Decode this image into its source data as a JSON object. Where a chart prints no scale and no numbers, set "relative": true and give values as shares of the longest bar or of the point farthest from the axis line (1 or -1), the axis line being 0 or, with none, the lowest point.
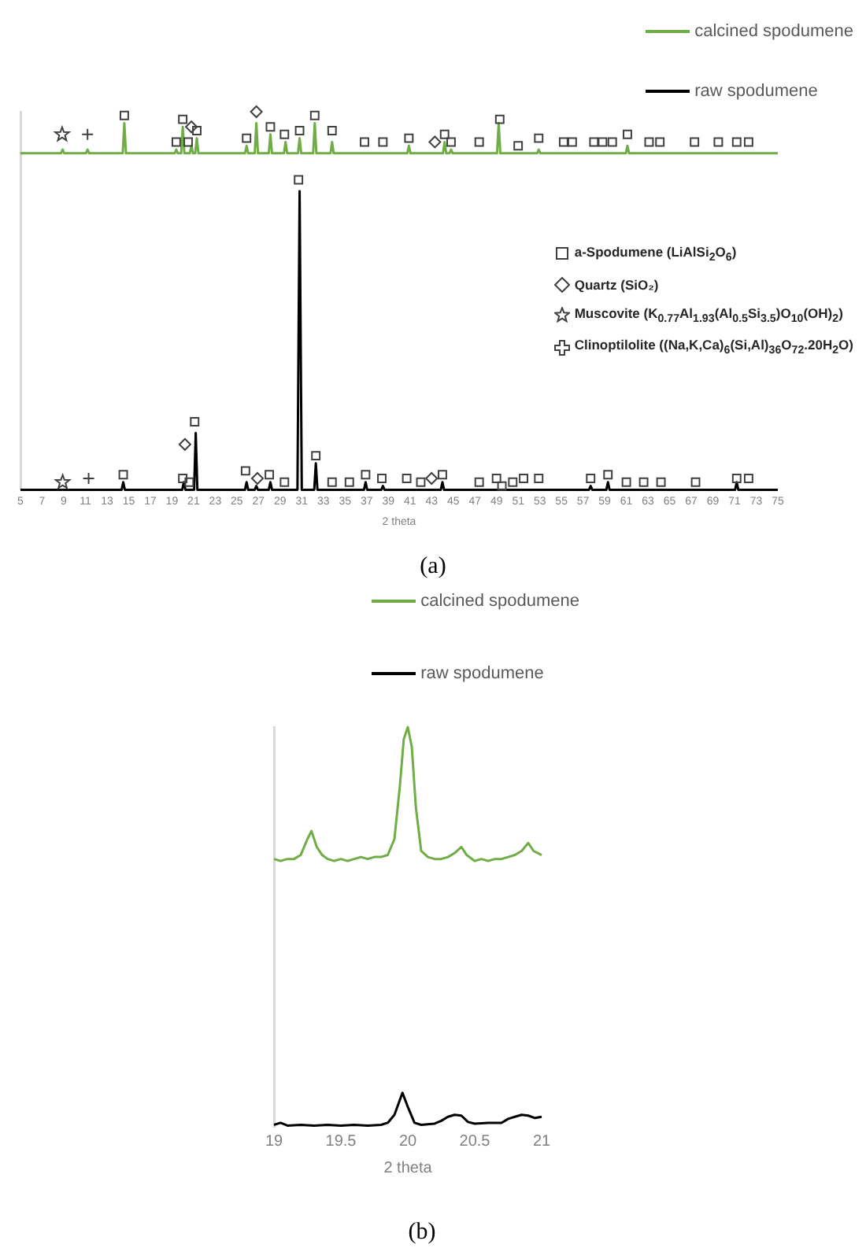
{
  "chart_data": [
    {
      "type": "line",
      "xlabel": "2 theta",
      "xlim": [
        5,
        75
      ],
      "xticks": [
        5,
        7,
        9,
        11,
        13,
        15,
        17,
        19,
        21,
        23,
        25,
        27,
        29,
        31,
        33,
        35,
        37,
        39,
        41,
        43,
        45,
        47,
        49,
        51,
        53,
        55,
        57,
        59,
        61,
        63,
        65,
        67,
        69,
        71,
        73,
        75
      ],
      "relative": true,
      "legend": "top right",
      "annotations": [
        "(a)"
      ],
      "series": [
        {
          "name": "calcined spodumene",
          "color": "#70ad47",
          "x": [
            5,
            8.75,
            8.9,
            9.05,
            11.05,
            11.2,
            11.35,
            14.45,
            14.6,
            14.75,
            19.25,
            19.4,
            19.55,
            19.85,
            20.0,
            20.15,
            20.65,
            20.8,
            20.95,
            21.15,
            21.3,
            21.45,
            25.75,
            25.9,
            26.05,
            26.65,
            26.8,
            26.95,
            27.95,
            28.1,
            28.25,
            29.35,
            29.5,
            29.65,
            30.65,
            30.8,
            30.95,
            32.05,
            32.2,
            32.35,
            33.65,
            33.8,
            33.95,
            40.75,
            40.9,
            41.05,
            44.05,
            44.2,
            44.35,
            44.65,
            44.8,
            44.95,
            49.05,
            49.2,
            49.35,
            52.75,
            52.9,
            53.05,
            60.95,
            61.1,
            61.25,
            75
          ],
          "values": [
            0.89,
            0.89,
            0.9,
            0.89,
            0.89,
            0.9,
            0.89,
            0.89,
            0.97,
            0.89,
            0.89,
            0.9,
            0.89,
            0.89,
            0.96,
            0.89,
            0.89,
            0.91,
            0.89,
            0.89,
            0.93,
            0.89,
            0.89,
            0.91,
            0.89,
            0.89,
            0.97,
            0.89,
            0.89,
            0.94,
            0.89,
            0.89,
            0.92,
            0.89,
            0.89,
            0.93,
            0.89,
            0.89,
            0.97,
            0.89,
            0.89,
            0.92,
            0.89,
            0.89,
            0.91,
            0.89,
            0.89,
            0.92,
            0.89,
            0.89,
            0.9,
            0.89,
            0.89,
            0.97,
            0.89,
            0.89,
            0.9,
            0.89,
            0.89,
            0.91,
            0.89,
            0.89
          ]
        },
        {
          "name": "raw spodumene",
          "color": "#000000",
          "x": [
            5,
            14.35,
            14.5,
            14.65,
            19.95,
            20.1,
            20.25,
            21.05,
            21.2,
            21.35,
            25.75,
            25.9,
            26.05,
            26.65,
            26.8,
            26.95,
            27.95,
            28.1,
            28.25,
            30.6,
            30.8,
            31.0,
            32.15,
            32.3,
            32.45,
            36.75,
            36.9,
            37.05,
            38.35,
            38.5,
            38.65,
            43.85,
            44.0,
            44.15,
            57.55,
            57.7,
            57.85,
            59.15,
            59.3,
            59.45,
            71.05,
            71.2,
            71.35,
            75
          ],
          "values": [
            0,
            0,
            0.02,
            0,
            0,
            0.02,
            0,
            0,
            0.15,
            0,
            0,
            0.02,
            0,
            0,
            0.01,
            0,
            0,
            0.02,
            0,
            0,
            0.79,
            0,
            0,
            0.07,
            0,
            0,
            0.02,
            0,
            0,
            0.01,
            0,
            0,
            0.02,
            0,
            0,
            0.01,
            0,
            0,
            0.02,
            0,
            0,
            0.02,
            0,
            0
          ]
        },
        {
          "name": "a-Spodumene (LiAlSi$_{2}$O$_{6}$)",
          "type": "scatter",
          "marker": "square",
          "color": "#404040",
          "x": [
            14.6,
            19.4,
            20.0,
            20.5,
            21.3,
            25.9,
            28.1,
            29.4,
            30.8,
            32.2,
            33.8,
            36.8,
            38.5,
            40.9,
            44.2,
            44.8,
            47.4,
            49.3,
            51.0,
            52.9,
            55.2,
            56.0,
            58.0,
            58.8,
            59.7,
            61.1,
            63.1,
            64.1,
            67.3,
            69.5,
            71.2,
            72.3,
            14.5,
            20.0,
            20.6,
            21.1,
            25.8,
            28.0,
            29.4,
            30.7,
            32.3,
            33.8,
            35.4,
            36.9,
            38.4,
            40.7,
            42.0,
            44.0,
            47.4,
            49.0,
            49.5,
            50.5,
            51.5,
            52.9,
            57.7,
            59.3,
            61.0,
            62.6,
            64.2,
            67.4,
            71.2,
            72.3
          ],
          "values": [
            0.99,
            0.92,
            0.98,
            0.92,
            0.95,
            0.93,
            0.96,
            0.94,
            0.95,
            0.99,
            0.95,
            0.92,
            0.92,
            0.93,
            0.94,
            0.92,
            0.92,
            0.98,
            0.91,
            0.93,
            0.92,
            0.92,
            0.92,
            0.92,
            0.92,
            0.94,
            0.92,
            0.92,
            0.92,
            0.92,
            0.92,
            0.92,
            0.04,
            0.03,
            0.02,
            0.18,
            0.05,
            0.04,
            0.02,
            0.82,
            0.09,
            0.02,
            0.02,
            0.04,
            0.03,
            0.03,
            0.02,
            0.04,
            0.02,
            0.03,
            0.01,
            0.02,
            0.03,
            0.03,
            0.03,
            0.04,
            0.02,
            0.02,
            0.02,
            0.02,
            0.03,
            0.03
          ]
        },
        {
          "name": "Quartz (SiO₂)",
          "type": "scatter",
          "marker": "diamond",
          "color": "#404040",
          "x": [
            20.8,
            26.8,
            43.3,
            20.2,
            26.9,
            43.0
          ],
          "values": [
            0.96,
            1.0,
            0.92,
            0.12,
            0.03,
            0.03
          ]
        },
        {
          "name": "Muscovite (K$_{0.77}$Al$_{1.93}$(Al$_{0.5}$Si$_{3.5}$)O$_{10}$(OH)$_{2}$)",
          "type": "scatter",
          "marker": "star",
          "color": "#404040",
          "x": [
            8.85,
            8.9
          ],
          "values": [
            0.94,
            0.02
          ]
        },
        {
          "name": "Clinoptilolite ((Na,K,Ca)$_{6}$(Si,Al)$_{36}$O$_{72}$.20H$_{2}$O)",
          "type": "scatter",
          "marker": "cross",
          "color": "#404040",
          "x": [
            11.2,
            11.3
          ],
          "values": [
            0.94,
            0.03
          ]
        }
      ]
    },
    {
      "type": "line",
      "xlabel": "2 theta",
      "xlim": [
        19,
        21
      ],
      "xticks": [
        19,
        19.5,
        20,
        20.5,
        21
      ],
      "relative": true,
      "legend": "top right",
      "annotations": [
        "(b)"
      ],
      "series": [
        {
          "name": "calcined spodumene",
          "color": "#70ad47",
          "x": [
            19.0,
            19.05,
            19.1,
            19.15,
            19.2,
            19.25,
            19.28,
            19.32,
            19.36,
            19.4,
            19.45,
            19.5,
            19.55,
            19.6,
            19.65,
            19.7,
            19.75,
            19.8,
            19.85,
            19.9,
            19.94,
            19.97,
            20.0,
            20.03,
            20.06,
            20.1,
            20.15,
            20.2,
            20.25,
            20.3,
            20.35,
            20.4,
            20.44,
            20.5,
            20.55,
            20.6,
            20.65,
            20.7,
            20.75,
            20.8,
            20.85,
            20.9,
            20.94,
            21.0
          ],
          "values": [
            0.67,
            0.665,
            0.67,
            0.67,
            0.68,
            0.72,
            0.74,
            0.7,
            0.68,
            0.67,
            0.665,
            0.67,
            0.665,
            0.67,
            0.675,
            0.67,
            0.675,
            0.675,
            0.68,
            0.72,
            0.85,
            0.97,
            1.0,
            0.95,
            0.8,
            0.69,
            0.675,
            0.67,
            0.67,
            0.675,
            0.685,
            0.7,
            0.68,
            0.665,
            0.67,
            0.665,
            0.67,
            0.67,
            0.675,
            0.68,
            0.69,
            0.71,
            0.69,
            0.68
          ]
        },
        {
          "name": "raw spodumene",
          "color": "#000000",
          "x": [
            19.0,
            19.05,
            19.1,
            19.2,
            19.3,
            19.4,
            19.5,
            19.6,
            19.7,
            19.8,
            19.85,
            19.9,
            19.96,
            20.0,
            20.05,
            20.1,
            20.2,
            20.25,
            20.3,
            20.35,
            20.4,
            20.45,
            20.5,
            20.6,
            20.7,
            20.75,
            20.8,
            20.85,
            20.9,
            20.95,
            21.0
          ],
          "values": [
            0.005,
            0.01,
            0.003,
            0.005,
            0.003,
            0.005,
            0.003,
            0.005,
            0.003,
            0.005,
            0.01,
            0.03,
            0.085,
            0.05,
            0.01,
            0.005,
            0.008,
            0.015,
            0.025,
            0.03,
            0.028,
            0.012,
            0.008,
            0.01,
            0.01,
            0.02,
            0.025,
            0.03,
            0.028,
            0.022,
            0.025
          ]
        }
      ]
    }
  ]
}
